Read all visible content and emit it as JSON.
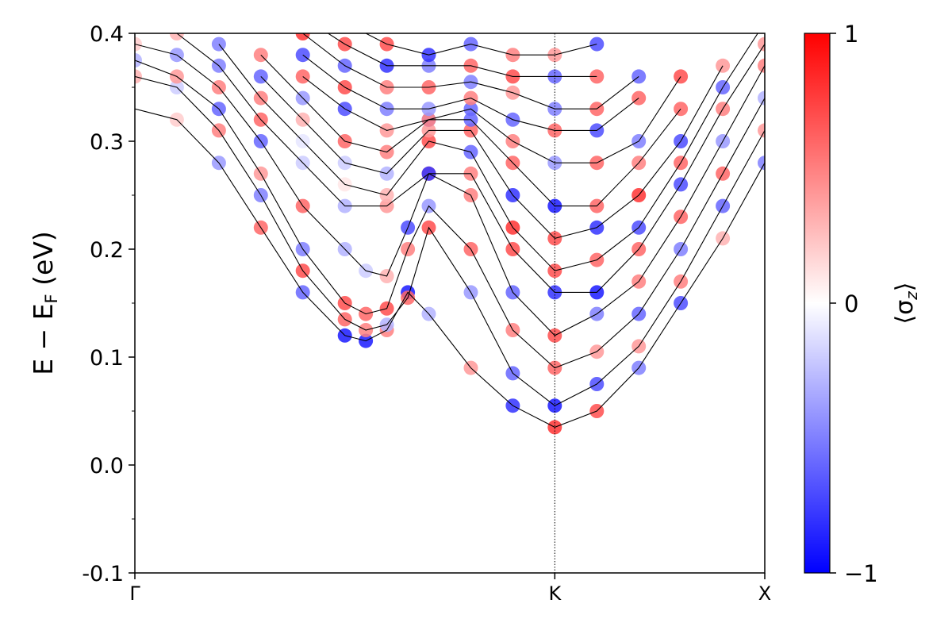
{
  "chart_data": {
    "type": "scatter",
    "title": "",
    "xlabel": "",
    "ylabel": "E − E",
    "ylabel_sub": "F",
    "ylabel_unit": " (eV)",
    "xlim": [
      0,
      1.5
    ],
    "ylim": [
      -0.1,
      0.4
    ],
    "y_ticks": [
      {
        "value": 0.4,
        "label": "0.4"
      },
      {
        "value": 0.3,
        "label": "0.3"
      },
      {
        "value": 0.2,
        "label": "0.2"
      },
      {
        "value": 0.1,
        "label": "0.1"
      },
      {
        "value": 0.0,
        "label": "0.0"
      },
      {
        "value": -0.1,
        "label": "-0.1"
      }
    ],
    "x_ticks": [
      {
        "value": 0,
        "label": "Γ"
      },
      {
        "value": 1.0,
        "label": "K"
      },
      {
        "value": 1.5,
        "label": "X"
      }
    ],
    "grid": false,
    "colorbar": {
      "label": "⟨σ",
      "label_sub": "z",
      "label_end": "⟩",
      "min": -1,
      "max": 1,
      "ticks": [
        {
          "value": 1,
          "label": "1"
        },
        {
          "value": 0,
          "label": "0"
        },
        {
          "value": -1,
          "label": "−1"
        }
      ],
      "colors": {
        "low": "#0000ff",
        "mid": "#ffffff",
        "high": "#ff0000"
      }
    },
    "bands": [
      {
        "x": [
          0,
          0.1,
          0.2,
          0.3,
          0.4,
          0.5,
          0.55,
          0.6,
          0.65,
          0.7,
          0.8,
          0.9,
          1.0,
          1.1,
          1.2,
          1.3,
          1.4,
          1.5
        ],
        "y": [
          0.33,
          0.32,
          0.28,
          0.22,
          0.16,
          0.12,
          0.115,
          0.125,
          0.16,
          0.14,
          0.09,
          0.055,
          0.035,
          0.05,
          0.09,
          0.15,
          0.21,
          0.28
        ],
        "s": [
          0,
          0.2,
          -0.4,
          0.6,
          -0.6,
          -0.9,
          -0.9,
          0.5,
          -0.9,
          -0.3,
          0.4,
          -0.8,
          0.8,
          0.7,
          -0.5,
          -0.7,
          0.3,
          -0.5
        ]
      },
      {
        "x": [
          0,
          0.1,
          0.2,
          0.3,
          0.4,
          0.5,
          0.55,
          0.6,
          0.65,
          0.7,
          0.8,
          0.9,
          1.0,
          1.1,
          1.2,
          1.3,
          1.4,
          1.5
        ],
        "y": [
          0.36,
          0.35,
          0.31,
          0.25,
          0.18,
          0.135,
          0.125,
          0.13,
          0.155,
          0.22,
          0.16,
          0.085,
          0.055,
          0.075,
          0.11,
          0.17,
          0.24,
          0.31
        ],
        "s": [
          0.3,
          -0.2,
          0.5,
          -0.5,
          0.7,
          0.6,
          0.5,
          -0.3,
          0.6,
          0.7,
          -0.4,
          -0.6,
          -0.9,
          -0.7,
          0.4,
          0.5,
          -0.6,
          0.4
        ]
      },
      {
        "x": [
          0,
          0.1,
          0.2,
          0.3,
          0.4,
          0.5,
          0.55,
          0.6,
          0.65,
          0.7,
          0.8,
          0.9,
          1.0,
          1.1,
          1.2,
          1.3,
          1.4,
          1.5
        ],
        "y": [
          0.375,
          0.36,
          0.33,
          0.27,
          0.2,
          0.15,
          0.14,
          0.145,
          0.2,
          0.24,
          0.2,
          0.125,
          0.09,
          0.105,
          0.14,
          0.2,
          0.27,
          0.34
        ],
        "s": [
          -0.3,
          0.4,
          -0.6,
          0.4,
          -0.5,
          0.7,
          0.6,
          0.7,
          0.5,
          -0.4,
          0.6,
          0.5,
          0.6,
          0.4,
          -0.6,
          -0.5,
          0.6,
          -0.3
        ]
      },
      {
        "x": [
          0,
          0.1,
          0.2,
          0.3,
          0.4,
          0.5,
          0.55,
          0.6,
          0.65,
          0.7,
          0.8,
          0.9,
          1.0,
          1.1,
          1.2,
          1.3,
          1.4,
          1.5
        ],
        "y": [
          0.39,
          0.38,
          0.35,
          0.3,
          0.24,
          0.2,
          0.18,
          0.175,
          0.22,
          0.27,
          0.25,
          0.16,
          0.12,
          0.14,
          0.17,
          0.23,
          0.3,
          0.37
        ],
        "s": [
          0.2,
          -0.4,
          0.5,
          -0.6,
          0.6,
          -0.3,
          -0.2,
          0.3,
          -0.7,
          0.6,
          0.5,
          -0.6,
          0.7,
          -0.5,
          0.5,
          0.6,
          -0.4,
          0.5
        ]
      },
      {
        "x": [
          0,
          0.1,
          0.2,
          0.3,
          0.4,
          0.5,
          0.6,
          0.7,
          0.8,
          0.9,
          1.0,
          1.1,
          1.2,
          1.3,
          1.4,
          1.5
        ],
        "y": [
          0.41,
          0.4,
          0.37,
          0.32,
          0.28,
          0.24,
          0.24,
          0.27,
          0.27,
          0.2,
          0.16,
          0.16,
          0.2,
          0.26,
          0.33,
          0.39
        ],
        "s": [
          0.5,
          0.3,
          -0.5,
          0.6,
          -0.2,
          -0.3,
          0.4,
          -0.8,
          0.5,
          0.7,
          -0.8,
          -0.9,
          0.6,
          -0.7,
          0.5,
          0.4
        ]
      },
      {
        "x": [
          0.2,
          0.3,
          0.4,
          0.5,
          0.6,
          0.7,
          0.8,
          0.9,
          1.0,
          1.1,
          1.2,
          1.3,
          1.4,
          1.5
        ],
        "y": [
          0.39,
          0.34,
          0.3,
          0.26,
          0.25,
          0.3,
          0.29,
          0.22,
          0.18,
          0.19,
          0.22,
          0.28,
          0.35,
          0.41
        ],
        "s": [
          -0.5,
          0.5,
          -0.1,
          0.1,
          0.3,
          0.7,
          -0.6,
          0.8,
          0.7,
          0.6,
          -0.7,
          0.6,
          -0.6,
          0.5
        ]
      },
      {
        "x": [
          0.3,
          0.4,
          0.5,
          0.6,
          0.7,
          0.8,
          0.9,
          1.0,
          1.1,
          1.2,
          1.3,
          1.4
        ],
        "y": [
          0.36,
          0.32,
          0.28,
          0.27,
          0.31,
          0.31,
          0.25,
          0.21,
          0.22,
          0.25,
          0.3,
          0.37
        ],
        "s": [
          -0.6,
          0.3,
          -0.2,
          -0.3,
          0.4,
          0.6,
          -0.8,
          0.7,
          -0.8,
          0.8,
          -0.7,
          0.4
        ]
      },
      {
        "x": [
          0.3,
          0.4,
          0.5,
          0.6,
          0.7,
          0.8,
          0.9,
          1.0,
          1.1,
          1.2,
          1.3
        ],
        "y": [
          0.38,
          0.34,
          0.3,
          0.29,
          0.32,
          0.32,
          0.28,
          0.24,
          0.24,
          0.28,
          0.33
        ],
        "s": [
          0.5,
          -0.4,
          0.6,
          0.5,
          -0.5,
          -0.6,
          0.6,
          -0.9,
          0.6,
          0.5,
          0.6
        ]
      },
      {
        "x": [
          0.4,
          0.5,
          0.6,
          0.7,
          0.8,
          0.9,
          1.0,
          1.1,
          1.2,
          1.3
        ],
        "y": [
          0.36,
          0.33,
          0.31,
          0.32,
          0.33,
          0.3,
          0.28,
          0.28,
          0.3,
          0.36
        ],
        "s": [
          0.6,
          -0.7,
          0.4,
          0.5,
          -0.6,
          0.5,
          -0.4,
          0.6,
          -0.5,
          0.7
        ]
      },
      {
        "x": [
          0.4,
          0.5,
          0.6,
          0.7,
          0.8,
          0.9,
          1.0,
          1.1,
          1.2
        ],
        "y": [
          0.38,
          0.35,
          0.33,
          0.33,
          0.34,
          0.32,
          0.31,
          0.31,
          0.34
        ],
        "s": [
          -0.7,
          0.7,
          -0.5,
          -0.4,
          0.5,
          -0.6,
          0.6,
          -0.7,
          0.6
        ]
      },
      {
        "x": [
          0.4,
          0.5,
          0.6,
          0.7,
          0.8,
          0.9,
          1.0,
          1.1,
          1.2
        ],
        "y": [
          0.4,
          0.37,
          0.35,
          0.35,
          0.355,
          0.345,
          0.33,
          0.33,
          0.36
        ],
        "s": [
          0.8,
          -0.6,
          0.5,
          0.6,
          -0.5,
          0.4,
          -0.5,
          0.6,
          -0.6
        ]
      },
      {
        "x": [
          0.4,
          0.5,
          0.6,
          0.7,
          0.8,
          0.9,
          1.0,
          1.1
        ],
        "y": [
          0.415,
          0.39,
          0.37,
          0.37,
          0.37,
          0.36,
          0.36,
          0.36
        ],
        "s": [
          -0.8,
          0.7,
          -0.8,
          -0.5,
          0.6,
          0.7,
          -0.6,
          0.6
        ]
      },
      {
        "x": [
          0.5,
          0.6,
          0.7,
          0.8,
          0.9,
          1.0,
          1.1
        ],
        "y": [
          0.41,
          0.39,
          0.38,
          0.39,
          0.38,
          0.38,
          0.39
        ],
        "s": [
          0.8,
          0.7,
          -0.8,
          -0.6,
          0.5,
          0.4,
          -0.7
        ]
      }
    ]
  }
}
